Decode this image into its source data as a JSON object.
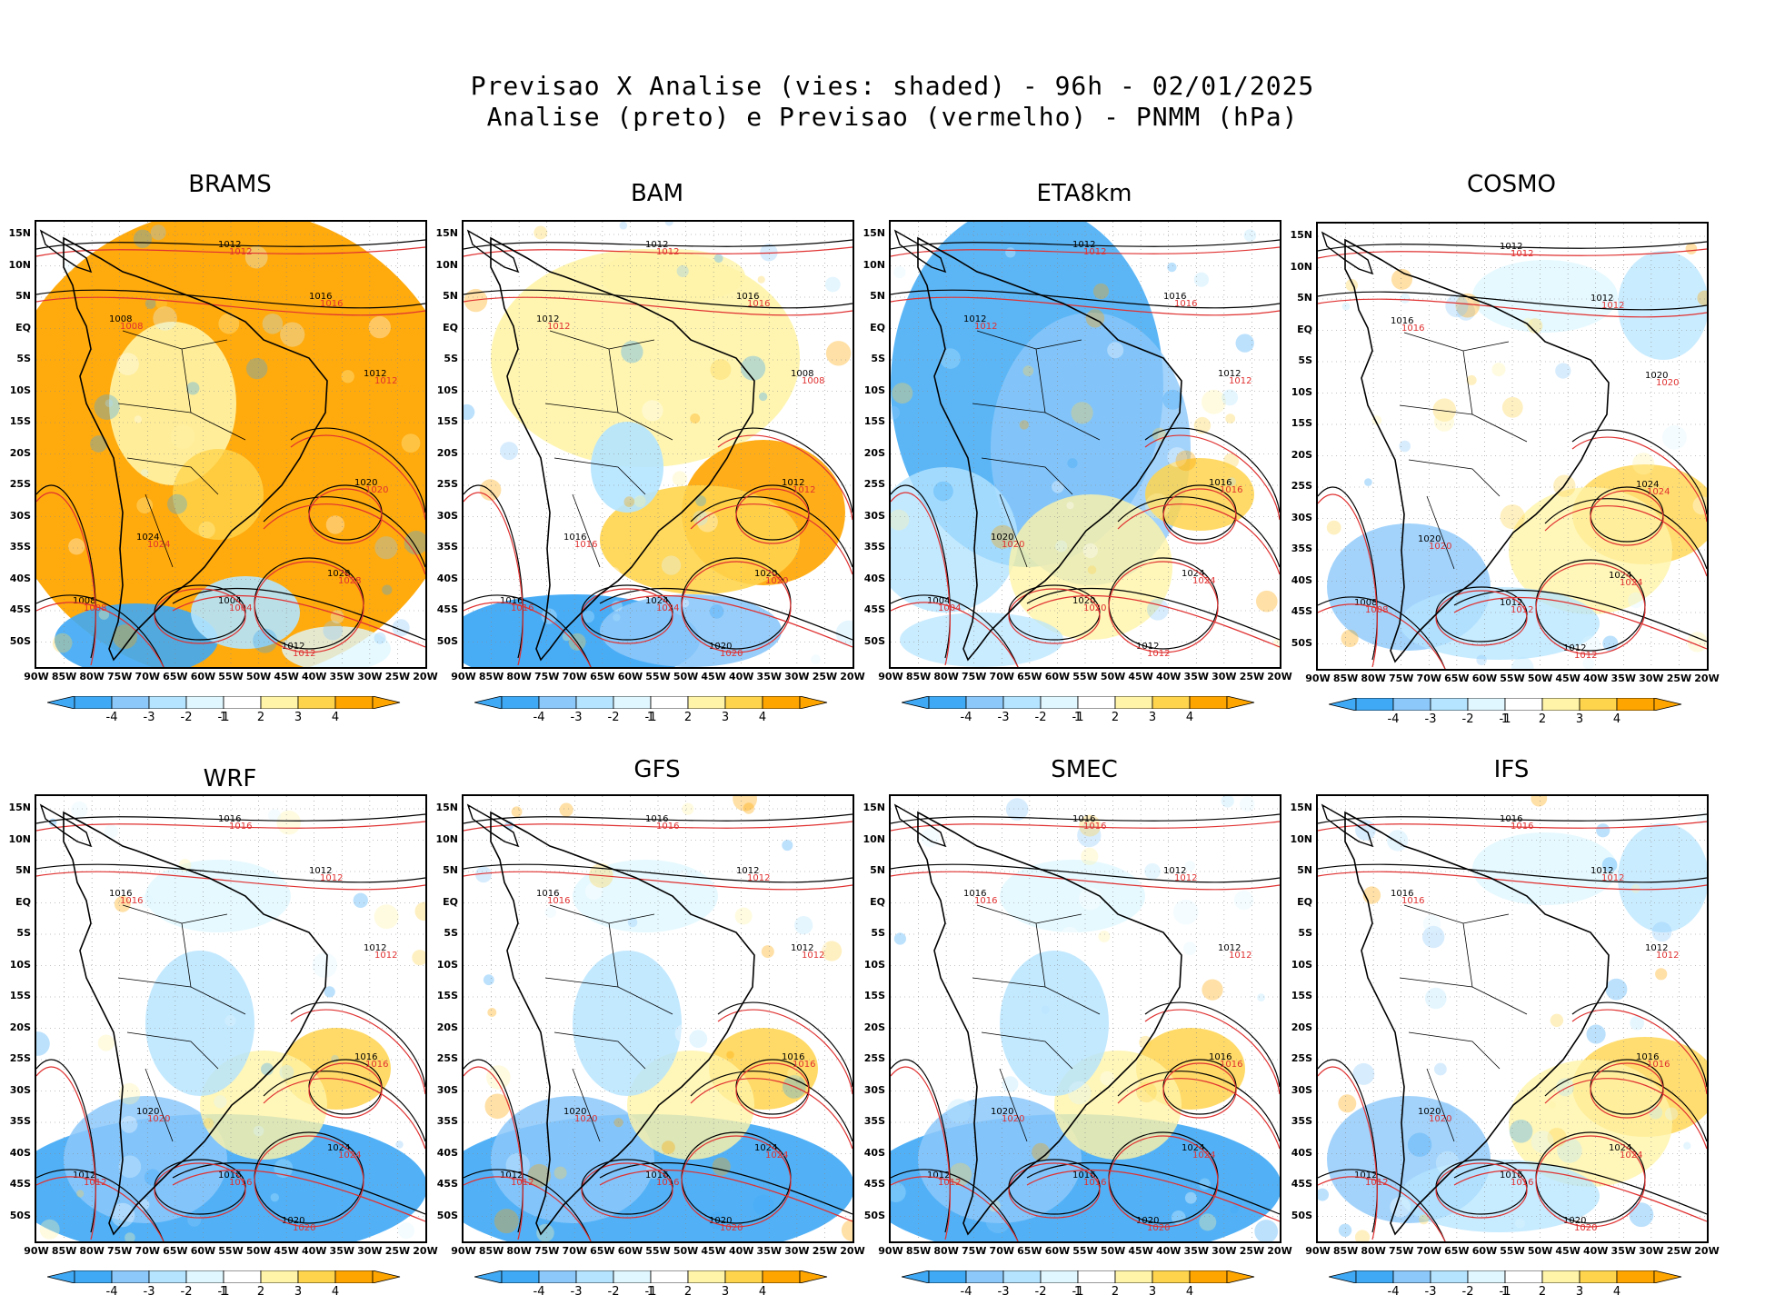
{
  "header": {
    "line1": "Previsao X Analise (vies: shaded) - 96h - 02/01/2025",
    "line2": "Analise (preto) e Previsao (vermelho) - PNMM (hPa)"
  },
  "lat_labels": [
    "15N",
    "10N",
    "5N",
    "EQ",
    "5S",
    "10S",
    "15S",
    "20S",
    "25S",
    "30S",
    "35S",
    "40S",
    "45S",
    "50S"
  ],
  "lon_labels": [
    "90W",
    "85W",
    "80W",
    "75W",
    "70W",
    "65W",
    "60W",
    "55W",
    "50W",
    "45W",
    "40W",
    "35W",
    "30W",
    "25W",
    "20W"
  ],
  "colorbar": {
    "labels": [
      "-4",
      "-3",
      "-2",
      "-1",
      "1",
      "2",
      "3",
      "4"
    ],
    "colors": [
      "#3fa9f5",
      "#8cc8fa",
      "#b4e4ff",
      "#e0f7ff",
      "#ffffff",
      "#fff4a8",
      "#ffd44d",
      "#ffa500"
    ]
  },
  "panels": [
    {
      "name": "BRAMS",
      "bias": "warm-strong",
      "contours": [
        "1012",
        "1016",
        "1008",
        "1012",
        "1020",
        "1024",
        "1028",
        "1004",
        "1008",
        "1012"
      ]
    },
    {
      "name": "BAM",
      "bias": "warm",
      "contours": [
        "1012",
        "1016",
        "1012",
        "1008",
        "1012",
        "1016",
        "1020",
        "1024",
        "1016",
        "1020"
      ]
    },
    {
      "name": "ETA8km",
      "bias": "cool",
      "contours": [
        "1012",
        "1016",
        "1012",
        "1012",
        "1016",
        "1020",
        "1024",
        "1020",
        "1004",
        "1012"
      ]
    },
    {
      "name": "COSMO",
      "bias": "mild",
      "contours": [
        "1012",
        "1012",
        "1016",
        "1020",
        "1024",
        "1020",
        "1024",
        "1012",
        "1008",
        "1012"
      ]
    },
    {
      "name": "WRF",
      "bias": "cool-south",
      "contours": [
        "1016",
        "1012",
        "1016",
        "1012",
        "1016",
        "1020",
        "1024",
        "1016",
        "1012",
        "1020"
      ]
    },
    {
      "name": "GFS",
      "bias": "cool-south",
      "contours": [
        "1016",
        "1012",
        "1016",
        "1012",
        "1016",
        "1020",
        "1024",
        "1016",
        "1012",
        "1020"
      ]
    },
    {
      "name": "SMEC",
      "bias": "cool-south",
      "contours": [
        "1016",
        "1012",
        "1016",
        "1012",
        "1016",
        "1020",
        "1024",
        "1016",
        "1012",
        "1020"
      ]
    },
    {
      "name": "IFS",
      "bias": "mild",
      "contours": [
        "1016",
        "1012",
        "1016",
        "1012",
        "1016",
        "1020",
        "1024",
        "1016",
        "1012",
        "1020"
      ]
    }
  ]
}
